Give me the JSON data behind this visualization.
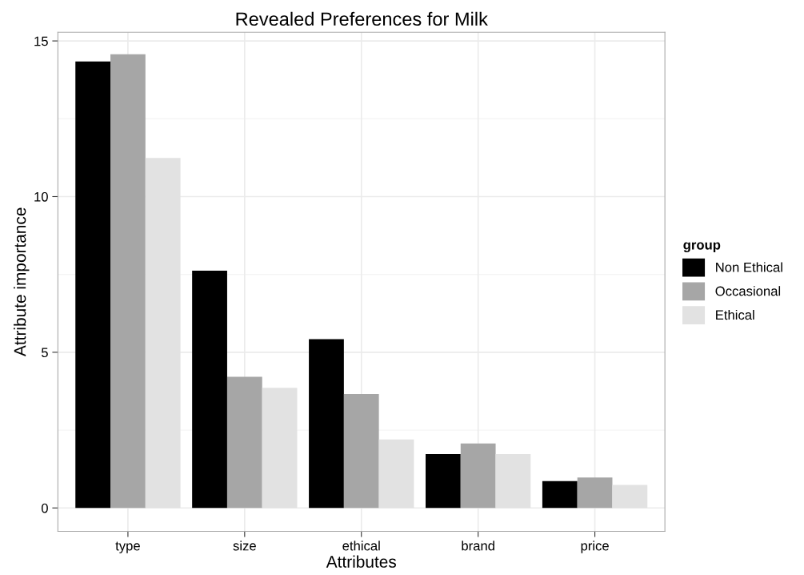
{
  "chart_data": {
    "type": "bar",
    "title": "Revealed Preferences for Milk",
    "xlabel": "Attributes",
    "ylabel": "Attribute importance",
    "legend_title": "group",
    "categories": [
      "type",
      "size",
      "ethical",
      "brand",
      "price"
    ],
    "series": [
      {
        "name": "Non Ethical",
        "color": "#000000",
        "values": [
          14.34,
          7.62,
          5.42,
          1.73,
          0.86
        ]
      },
      {
        "name": "Occasional",
        "color": "#a6a6a6",
        "values": [
          14.57,
          4.21,
          3.66,
          2.07,
          0.98
        ]
      },
      {
        "name": "Ethical",
        "color": "#e2e2e2",
        "values": [
          11.24,
          3.86,
          2.2,
          1.73,
          0.74
        ]
      }
    ],
    "ylim": [
      -0.75,
      15.28
    ],
    "yticks": [
      0,
      5,
      10,
      15
    ],
    "grid": true,
    "legend": "right"
  }
}
